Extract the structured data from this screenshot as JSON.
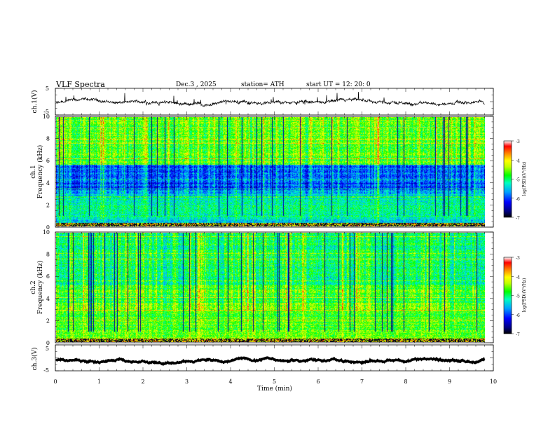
{
  "header": {
    "title": "VLF  Spectra",
    "date": "Dec.3   , 2025",
    "station": "station= ATH",
    "start": "start  UT  =     12: 20: 0"
  },
  "chart_data": [
    {
      "type": "line",
      "name": "ch1-waveform",
      "ylabel": "ch.1(V)",
      "ylim": [
        -5,
        5
      ],
      "yticks": [
        "5",
        "-5"
      ],
      "xlim": [
        0,
        9.8
      ],
      "baseline": -0.6,
      "amplitude": 0.8,
      "color": "#000000"
    },
    {
      "type": "heatmap",
      "name": "ch1-spectrogram",
      "ylabel": "ch.1\nFrequency (kHz)",
      "ylim": [
        0,
        10
      ],
      "yticks": [
        "0",
        "2",
        "4",
        "6",
        "8",
        "10"
      ],
      "xlim": [
        0,
        9.8
      ],
      "colorbar": {
        "label": "log(PSD)(V²/Hz)",
        "range": [
          -7,
          -3
        ],
        "ticks": [
          "-3",
          "-4",
          "-5",
          "-6",
          "-7"
        ]
      }
    },
    {
      "type": "heatmap",
      "name": "ch2-spectrogram",
      "ylabel": "ch.2\nFrequency (kHz)",
      "ylim": [
        0,
        10
      ],
      "yticks": [
        "0",
        "2",
        "4",
        "6",
        "8",
        "10"
      ],
      "xlim": [
        0,
        9.8
      ],
      "colorbar": {
        "label": "log(PSD)(V²/Hz)",
        "range": [
          -7,
          -3
        ],
        "ticks": [
          "-3",
          "-4",
          "-5",
          "-6",
          "-7"
        ]
      }
    },
    {
      "type": "line",
      "name": "ch3-waveform",
      "ylabel": "ch.3(V)",
      "ylim": [
        -5,
        5
      ],
      "yticks": [
        "5",
        "-5"
      ],
      "xlim": [
        0,
        9.8
      ],
      "baseline": -1.0,
      "amplitude": 0.15,
      "color": "#000000"
    }
  ],
  "xaxis": {
    "label": "Time  (min)",
    "range": [
      0,
      10
    ],
    "ticks": [
      "0",
      "1",
      "2",
      "3",
      "4",
      "5",
      "6",
      "7",
      "8",
      "9",
      "10"
    ]
  },
  "colors": {
    "scale": [
      "#000000",
      "#0000ff",
      "#00bfff",
      "#00ff7f",
      "#ffff00",
      "#ff8000",
      "#ff0000",
      "#ffffff"
    ]
  }
}
